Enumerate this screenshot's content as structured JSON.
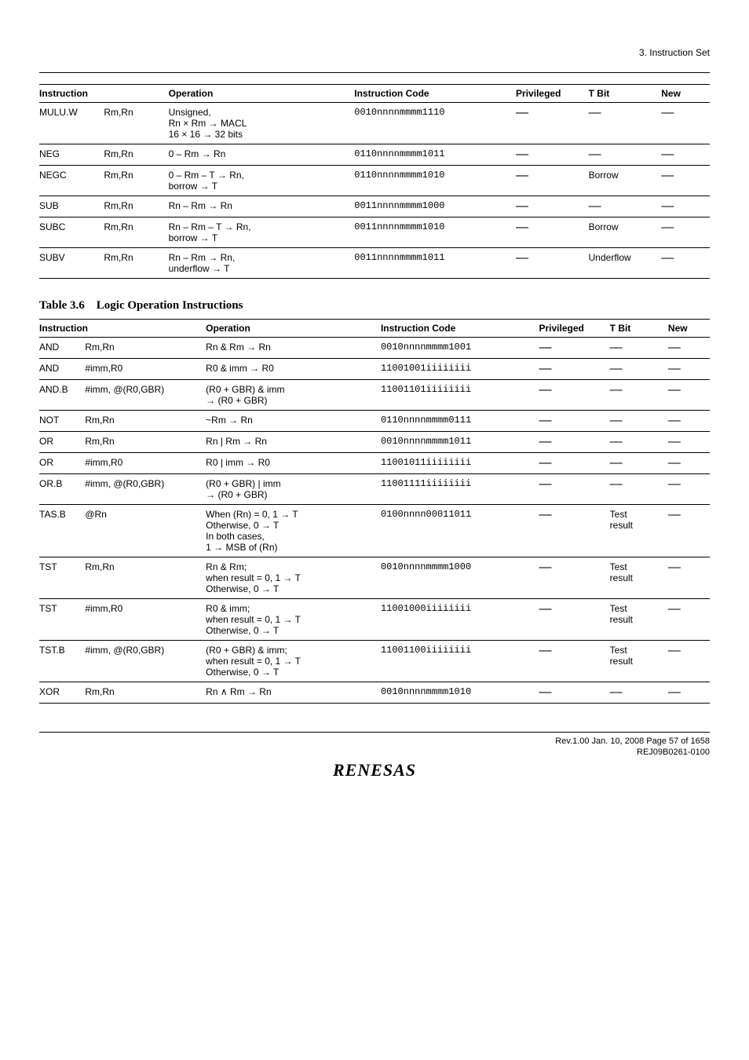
{
  "header": {
    "section": "3.   Instruction Set"
  },
  "table1": {
    "headers": [
      "Instruction",
      "Operation",
      "Instruction Code",
      "Privileged",
      "T Bit",
      "New"
    ],
    "rows": [
      {
        "mnemonic": "MULU.W",
        "ops": "Rm,Rn",
        "operation": "Unsigned,\nRn × Rm → MACL\n16 × 16 → 32 bits",
        "code": "0010nnnnmmmm1110",
        "priv": "—",
        "tbit": "—",
        "new": "—"
      },
      {
        "mnemonic": "NEG",
        "ops": "Rm,Rn",
        "operation": "0 – Rm → Rn",
        "code": "0110nnnnmmmm1011",
        "priv": "—",
        "tbit": "—",
        "new": "—"
      },
      {
        "mnemonic": "NEGC",
        "ops": "Rm,Rn",
        "operation": "0 – Rm – T → Rn,\nborrow → T",
        "code": "0110nnnnmmmm1010",
        "priv": "—",
        "tbit": "Borrow",
        "new": "—"
      },
      {
        "mnemonic": "SUB",
        "ops": "Rm,Rn",
        "operation": "Rn – Rm → Rn",
        "code": "0011nnnnmmmm1000",
        "priv": "—",
        "tbit": "—",
        "new": "—"
      },
      {
        "mnemonic": "SUBC",
        "ops": "Rm,Rn",
        "operation": "Rn – Rm – T → Rn,\nborrow → T",
        "code": "0011nnnnmmmm1010",
        "priv": "—",
        "tbit": "Borrow",
        "new": "—"
      },
      {
        "mnemonic": "SUBV",
        "ops": "Rm,Rn",
        "operation": "Rn – Rm → Rn,\nunderflow → T",
        "code": "0011nnnnmmmm1011",
        "priv": "—",
        "tbit": "Underflow",
        "new": "—"
      }
    ]
  },
  "caption": {
    "label": "Table 3.6",
    "title": "Logic Operation Instructions"
  },
  "table2": {
    "headers": [
      "Instruction",
      "Operation",
      "Instruction Code",
      "Privileged",
      "T Bit",
      "New"
    ],
    "rows": [
      {
        "mnemonic": "AND",
        "ops": "Rm,Rn",
        "operation": "Rn & Rm → Rn",
        "code": "0010nnnnmmmm1001",
        "priv": "—",
        "tbit": "—",
        "new": "—"
      },
      {
        "mnemonic": "AND",
        "ops": "#imm,R0",
        "operation": "R0 & imm → R0",
        "code": "11001001iiiiiiii",
        "priv": "—",
        "tbit": "—",
        "new": "—"
      },
      {
        "mnemonic": "AND.B",
        "ops": "#imm, @(R0,GBR)",
        "operation": "(R0 + GBR) & imm\n→ (R0 + GBR)",
        "code": "11001101iiiiiiii",
        "priv": "—",
        "tbit": "—",
        "new": "—"
      },
      {
        "mnemonic": "NOT",
        "ops": "Rm,Rn",
        "operation": "~Rm → Rn",
        "code": "0110nnnnmmmm0111",
        "priv": "—",
        "tbit": "—",
        "new": "—"
      },
      {
        "mnemonic": "OR",
        "ops": "Rm,Rn",
        "operation": "Rn | Rm → Rn",
        "code": "0010nnnnmmmm1011",
        "priv": "—",
        "tbit": "—",
        "new": "—"
      },
      {
        "mnemonic": "OR",
        "ops": "#imm,R0",
        "operation": "R0 | imm → R0",
        "code": "11001011iiiiiiii",
        "priv": "—",
        "tbit": "—",
        "new": "—"
      },
      {
        "mnemonic": "OR.B",
        "ops": "#imm, @(R0,GBR)",
        "operation": "(R0 + GBR) | imm\n→ (R0 + GBR)",
        "code": "11001111iiiiiiii",
        "priv": "—",
        "tbit": "—",
        "new": "—"
      },
      {
        "mnemonic": "TAS.B",
        "ops": "@Rn",
        "operation": "When (Rn) = 0, 1 → T\nOtherwise, 0 → T\nIn both cases,\n1 → MSB of (Rn)",
        "code": "0100nnnn00011011",
        "priv": "—",
        "tbit": "Test\nresult",
        "new": "—"
      },
      {
        "mnemonic": "TST",
        "ops": "Rm,Rn",
        "operation": "Rn & Rm;\nwhen result = 0, 1 → T\nOtherwise, 0 → T",
        "code": "0010nnnnmmmm1000",
        "priv": "—",
        "tbit": "Test\nresult",
        "new": "—"
      },
      {
        "mnemonic": "TST",
        "ops": "#imm,R0",
        "operation": "R0 & imm;\nwhen result = 0, 1 → T\nOtherwise, 0 → T",
        "code": "11001000iiiiiiii",
        "priv": "—",
        "tbit": "Test\nresult",
        "new": "—"
      },
      {
        "mnemonic": "TST.B",
        "ops": "#imm, @(R0,GBR)",
        "operation": "(R0 + GBR) & imm;\nwhen result = 0, 1 → T\nOtherwise, 0 → T",
        "code": "11001100iiiiiiii",
        "priv": "—",
        "tbit": "Test\nresult",
        "new": "—"
      },
      {
        "mnemonic": "XOR",
        "ops": "Rm,Rn",
        "operation": "Rn ∧ Rm → Rn",
        "code": "0010nnnnmmmm1010",
        "priv": "—",
        "tbit": "—",
        "new": "—"
      }
    ]
  },
  "footer": {
    "line1": "Rev.1.00  Jan. 10, 2008  Page 57 of 1658",
    "line2": "REJ09B0261-0100",
    "logo": "RENESAS"
  },
  "layout": {
    "t1_colwidths": [
      "80",
      "80",
      "230",
      "200",
      "90",
      "90",
      "60"
    ],
    "t2_colwidths": [
      "55",
      "145",
      "210",
      "190",
      "85",
      "70",
      "50"
    ]
  }
}
